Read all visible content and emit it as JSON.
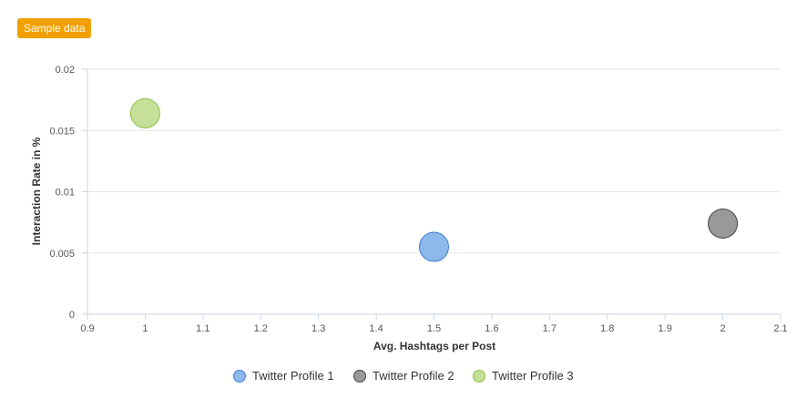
{
  "badge": {
    "label": "Sample data"
  },
  "colors": {
    "badge": "#f0a000",
    "grid": "#e6e6e6",
    "axis": "#c9d6e6"
  },
  "chart_data": {
    "type": "scatter",
    "title": "",
    "xlabel": "Avg. Hashtags per Post",
    "ylabel": "Interaction Rate in %",
    "xlim": [
      0.9,
      2.1
    ],
    "ylim": [
      0,
      0.02
    ],
    "x_ticks": [
      "0.9",
      "1",
      "1.1",
      "1.2",
      "1.3",
      "1.4",
      "1.5",
      "1.6",
      "1.7",
      "1.8",
      "1.9",
      "2",
      "2.1"
    ],
    "y_ticks": [
      "0",
      "0.005",
      "0.01",
      "0.015",
      "0.02"
    ],
    "grid": true,
    "legend_position": "bottom",
    "series": [
      {
        "name": "Twitter Profile 1",
        "x": 1.5,
        "y": 0.0055,
        "color": "#8db8ea",
        "stroke": "#3e7ed6"
      },
      {
        "name": "Twitter Profile 2",
        "x": 2.0,
        "y": 0.0074,
        "color": "#999999",
        "stroke": "#444444"
      },
      {
        "name": "Twitter Profile 3",
        "x": 1.0,
        "y": 0.0164,
        "color": "#c6e09a",
        "stroke": "#8cc040"
      }
    ]
  }
}
